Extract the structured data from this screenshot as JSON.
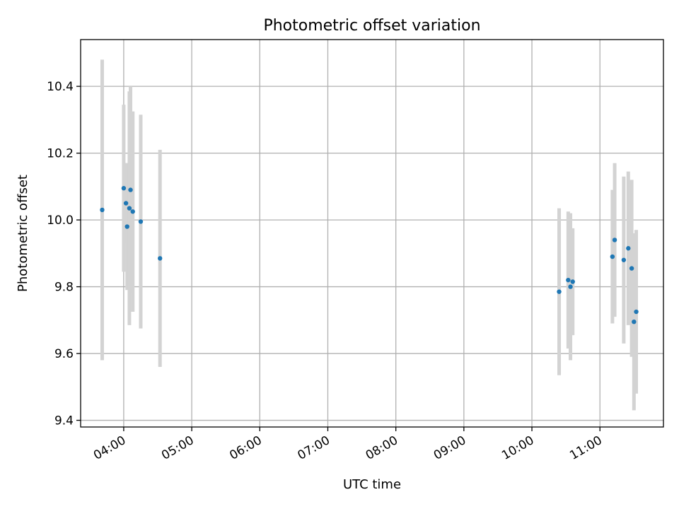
{
  "chart_data": {
    "type": "scatter",
    "title": "Photometric offset variation",
    "xlabel": "UTC time",
    "ylabel": "Photometric offset",
    "xlim": [
      "03:22",
      "11:56"
    ],
    "ylim": [
      9.38,
      10.54
    ],
    "xticks": [
      "04:00",
      "05:00",
      "06:00",
      "07:00",
      "08:00",
      "09:00",
      "10:00",
      "11:00"
    ],
    "yticks": [
      9.4,
      9.6,
      9.8,
      10.0,
      10.2,
      10.4
    ],
    "grid": true,
    "colors": {
      "marker": "#1f77b4",
      "errorbar": "#d3d3d3",
      "grid": "#b0b0b0"
    },
    "series": [
      {
        "points": [
          {
            "x": "03:41",
            "y": 10.03,
            "yerr": 0.45
          },
          {
            "x": "04:00",
            "y": 10.095,
            "yerr": 0.25
          },
          {
            "x": "04:02",
            "y": 10.05,
            "yerr": 0.12
          },
          {
            "x": "04:03",
            "y": 9.98,
            "yerr": 0.19
          },
          {
            "x": "04:05",
            "y": 10.035,
            "yerr": 0.35
          },
          {
            "x": "04:06",
            "y": 10.09,
            "yerr": 0.31
          },
          {
            "x": "04:08",
            "y": 10.025,
            "yerr": 0.3
          },
          {
            "x": "04:15",
            "y": 9.995,
            "yerr": 0.32
          },
          {
            "x": "04:32",
            "y": 9.885,
            "yerr": 0.325
          },
          {
            "x": "10:24",
            "y": 9.785,
            "yerr": 0.25
          },
          {
            "x": "10:32",
            "y": 9.82,
            "yerr": 0.205
          },
          {
            "x": "10:34",
            "y": 9.8,
            "yerr": 0.22
          },
          {
            "x": "10:36",
            "y": 9.815,
            "yerr": 0.16
          },
          {
            "x": "11:11",
            "y": 9.89,
            "yerr": 0.2
          },
          {
            "x": "11:13",
            "y": 9.94,
            "yerr": 0.23
          },
          {
            "x": "11:21",
            "y": 9.88,
            "yerr": 0.25
          },
          {
            "x": "11:25",
            "y": 9.915,
            "yerr": 0.23
          },
          {
            "x": "11:28",
            "y": 9.855,
            "yerr": 0.265
          },
          {
            "x": "11:30",
            "y": 9.695,
            "yerr": 0.265
          },
          {
            "x": "11:32",
            "y": 9.725,
            "yerr": 0.245
          }
        ]
      }
    ]
  }
}
